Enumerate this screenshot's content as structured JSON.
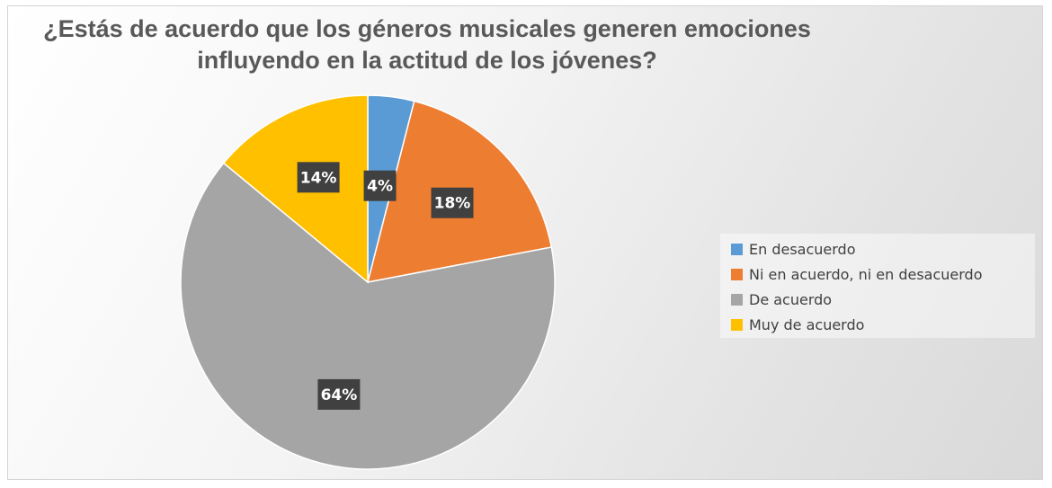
{
  "chart_data": {
    "type": "pie",
    "title": "¿Estás de acuerdo que los géneros musicales generen emociones influyendo en la actitud de los jóvenes?",
    "title_lines": [
      "¿Estás de acuerdo que los géneros musicales generen emociones",
      "influyendo en la actitud de los jóvenes?"
    ],
    "categories": [
      "En desacuerdo",
      "Ni en acuerdo, ni en desacuerdo",
      "De acuerdo",
      "Muy de acuerdo"
    ],
    "values": [
      4,
      18,
      64,
      14
    ],
    "data_labels": [
      "4%",
      "18%",
      "64%",
      "14%"
    ],
    "colors": [
      "#5b9bd5",
      "#ed7d31",
      "#a5a5a5",
      "#ffc000"
    ],
    "legend_position": "right",
    "start_angle": "12 o'clock, clockwise"
  }
}
